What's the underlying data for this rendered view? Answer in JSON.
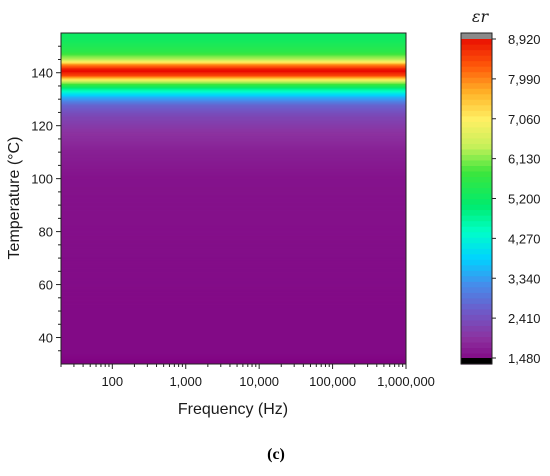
{
  "caption": "(c)",
  "chart_data": {
    "type": "heatmap",
    "title": "",
    "xlabel": "Frequency (Hz)",
    "ylabel": "Temperature (°C)",
    "x_scale": "log",
    "xlim": [
      20,
      1000000
    ],
    "ylim": [
      30,
      155
    ],
    "x_ticks": [
      100,
      1000,
      10000,
      100000,
      1000000
    ],
    "x_tick_labels": [
      "100",
      "1,000",
      "10,000",
      "100,000",
      "1,000,000"
    ],
    "y_ticks": [
      40,
      60,
      80,
      100,
      120,
      140
    ],
    "y_tick_labels": [
      "40",
      "60",
      "80",
      "100",
      "120",
      "140"
    ],
    "colorbar": {
      "label": "εr",
      "min": 1480,
      "max": 8920,
      "ticks": [
        1480,
        2410,
        3340,
        4270,
        5200,
        6130,
        7060,
        7990,
        8920
      ],
      "tick_labels": [
        "1,480",
        "2,410",
        "3,340",
        "4,270",
        "5,200",
        "6,130",
        "7,060",
        "7,990",
        "8,920"
      ]
    },
    "temperature_profile": [
      {
        "T": 30,
        "eps": 1480
      },
      {
        "T": 34,
        "eps": 1600
      },
      {
        "T": 50,
        "eps": 1600
      },
      {
        "T": 100,
        "eps": 1700
      },
      {
        "T": 110,
        "eps": 1850
      },
      {
        "T": 118,
        "eps": 2100
      },
      {
        "T": 124,
        "eps": 2400
      },
      {
        "T": 128,
        "eps": 2800
      },
      {
        "T": 131,
        "eps": 3600
      },
      {
        "T": 134,
        "eps": 4800
      },
      {
        "T": 137,
        "eps": 6500
      },
      {
        "T": 139,
        "eps": 8300
      },
      {
        "T": 141,
        "eps": 8900
      },
      {
        "T": 143,
        "eps": 8000
      },
      {
        "T": 145,
        "eps": 6400
      },
      {
        "T": 148,
        "eps": 5600
      },
      {
        "T": 152,
        "eps": 5300
      },
      {
        "T": 155,
        "eps": 5200
      }
    ]
  }
}
